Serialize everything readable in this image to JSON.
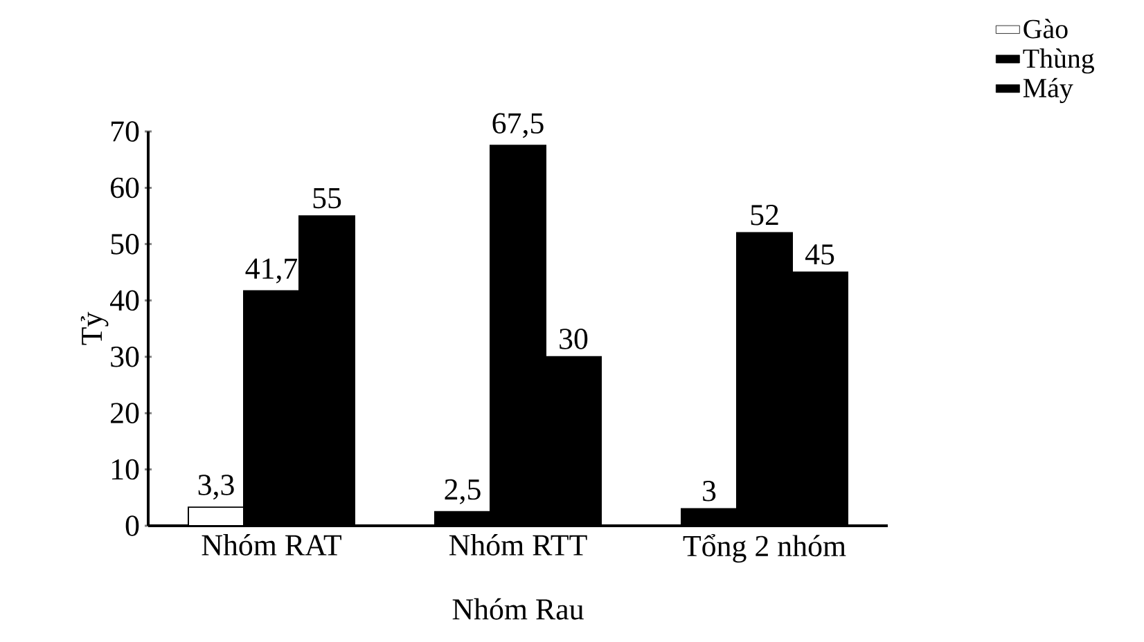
{
  "chart_data": {
    "type": "bar",
    "xlabel": "Nhóm Rau",
    "ylabel": "Tỷ",
    "categories": [
      "Nhóm RAT",
      "Nhóm RTT",
      "Tổng 2 nhóm"
    ],
    "series": [
      {
        "name": "Gào",
        "color": "#ffffff",
        "colors": [
          "#ffffff",
          "#000000",
          "#000000"
        ],
        "values": [
          3.3,
          2.5,
          3
        ],
        "value_labels": [
          "3,3",
          "2,5",
          "3"
        ]
      },
      {
        "name": "Thùng",
        "color": "#000000",
        "values": [
          41.7,
          67.5,
          52
        ],
        "value_labels": [
          "41,7",
          "67,5",
          "52"
        ]
      },
      {
        "name": "Máy",
        "color": "#000000",
        "values": [
          55,
          30,
          45
        ],
        "value_labels": [
          "55",
          "30",
          "45"
        ]
      }
    ],
    "ylim": [
      0,
      70
    ],
    "yticks": [
      0,
      10,
      20,
      30,
      40,
      50,
      60,
      70
    ],
    "legend": "top right",
    "grid": false
  }
}
